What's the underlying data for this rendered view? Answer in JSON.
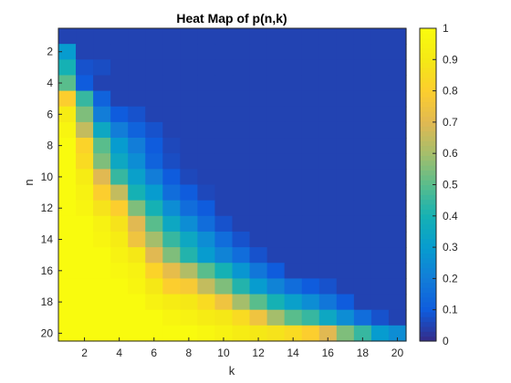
{
  "chart_data": {
    "type": "heatmap",
    "title": "Heat Map of p(n,k)",
    "xlabel": "k",
    "ylabel": "n",
    "x": [
      1,
      2,
      3,
      4,
      5,
      6,
      7,
      8,
      9,
      10,
      11,
      12,
      13,
      14,
      15,
      16,
      17,
      18,
      19,
      20
    ],
    "y": [
      1,
      2,
      3,
      4,
      5,
      6,
      7,
      8,
      9,
      10,
      11,
      12,
      13,
      14,
      15,
      16,
      17,
      18,
      19,
      20
    ],
    "xticks": [
      2,
      4,
      6,
      8,
      10,
      12,
      14,
      16,
      18,
      20
    ],
    "yticks": [
      2,
      4,
      6,
      8,
      10,
      12,
      14,
      16,
      18,
      20
    ],
    "colorbar": {
      "ticks": [
        0,
        0.1,
        0.2,
        0.3,
        0.4,
        0.5,
        0.6,
        0.7,
        0.8,
        0.9,
        1
      ],
      "tick_labels": [
        "0",
        "0.1",
        "0.2",
        "0.3",
        "0.4",
        "0.5",
        "0.6",
        "0.7",
        "0.8",
        "0.9",
        "1"
      ],
      "range": [
        0,
        1
      ]
    },
    "colormap": "parula",
    "values": [
      [
        0.05,
        0.05,
        0.05,
        0.05,
        0.05,
        0.05,
        0.05,
        0.05,
        0.05,
        0.05,
        0.05,
        0.05,
        0.05,
        0.05,
        0.05,
        0.05,
        0.05,
        0.05,
        0.05,
        0.05
      ],
      [
        0.3,
        0.05,
        0.05,
        0.05,
        0.05,
        0.05,
        0.05,
        0.05,
        0.05,
        0.05,
        0.05,
        0.05,
        0.05,
        0.05,
        0.05,
        0.05,
        0.05,
        0.05,
        0.05,
        0.05
      ],
      [
        0.4,
        0.08,
        0.07,
        0.05,
        0.05,
        0.05,
        0.05,
        0.05,
        0.05,
        0.05,
        0.05,
        0.05,
        0.05,
        0.05,
        0.05,
        0.05,
        0.05,
        0.05,
        0.05,
        0.05
      ],
      [
        0.5,
        0.1,
        0.05,
        0.05,
        0.05,
        0.05,
        0.05,
        0.05,
        0.05,
        0.05,
        0.05,
        0.05,
        0.05,
        0.05,
        0.05,
        0.05,
        0.05,
        0.05,
        0.05,
        0.05
      ],
      [
        0.8,
        0.45,
        0.12,
        0.05,
        0.05,
        0.05,
        0.05,
        0.05,
        0.05,
        0.05,
        0.05,
        0.05,
        0.05,
        0.05,
        0.05,
        0.05,
        0.05,
        0.05,
        0.05,
        0.05
      ],
      [
        0.92,
        0.55,
        0.2,
        0.1,
        0.08,
        0.05,
        0.05,
        0.05,
        0.05,
        0.05,
        0.05,
        0.05,
        0.05,
        0.05,
        0.05,
        0.05,
        0.05,
        0.05,
        0.05,
        0.05
      ],
      [
        0.97,
        0.65,
        0.35,
        0.2,
        0.12,
        0.08,
        0.05,
        0.05,
        0.05,
        0.05,
        0.05,
        0.05,
        0.05,
        0.05,
        0.05,
        0.05,
        0.05,
        0.05,
        0.05,
        0.05
      ],
      [
        1.0,
        0.82,
        0.5,
        0.3,
        0.2,
        0.1,
        0.06,
        0.05,
        0.05,
        0.05,
        0.05,
        0.05,
        0.05,
        0.05,
        0.05,
        0.05,
        0.05,
        0.05,
        0.05,
        0.05
      ],
      [
        1.0,
        0.85,
        0.55,
        0.35,
        0.25,
        0.12,
        0.07,
        0.05,
        0.05,
        0.05,
        0.05,
        0.05,
        0.05,
        0.05,
        0.05,
        0.05,
        0.05,
        0.05,
        0.05,
        0.05
      ],
      [
        1.0,
        0.92,
        0.7,
        0.45,
        0.32,
        0.2,
        0.1,
        0.06,
        0.05,
        0.05,
        0.05,
        0.05,
        0.05,
        0.05,
        0.05,
        0.05,
        0.05,
        0.05,
        0.05,
        0.05
      ],
      [
        1.0,
        0.95,
        0.8,
        0.65,
        0.4,
        0.3,
        0.15,
        0.1,
        0.06,
        0.05,
        0.05,
        0.05,
        0.05,
        0.05,
        0.05,
        0.05,
        0.05,
        0.05,
        0.05,
        0.05
      ],
      [
        1.0,
        0.97,
        0.88,
        0.8,
        0.55,
        0.4,
        0.25,
        0.15,
        0.1,
        0.05,
        0.05,
        0.05,
        0.05,
        0.05,
        0.05,
        0.05,
        0.05,
        0.05,
        0.05,
        0.05
      ],
      [
        1.0,
        1.0,
        0.95,
        0.88,
        0.7,
        0.5,
        0.35,
        0.25,
        0.15,
        0.08,
        0.05,
        0.05,
        0.05,
        0.05,
        0.05,
        0.05,
        0.05,
        0.05,
        0.05,
        0.05
      ],
      [
        1.0,
        1.0,
        0.97,
        0.92,
        0.75,
        0.6,
        0.45,
        0.35,
        0.25,
        0.15,
        0.08,
        0.05,
        0.05,
        0.05,
        0.05,
        0.05,
        0.05,
        0.05,
        0.05,
        0.05
      ],
      [
        1.0,
        1.0,
        1.0,
        0.95,
        0.9,
        0.7,
        0.55,
        0.42,
        0.3,
        0.22,
        0.15,
        0.08,
        0.05,
        0.05,
        0.05,
        0.05,
        0.05,
        0.05,
        0.05,
        0.05
      ],
      [
        1.0,
        1.0,
        1.0,
        0.98,
        0.95,
        0.82,
        0.72,
        0.62,
        0.5,
        0.4,
        0.28,
        0.18,
        0.1,
        0.05,
        0.05,
        0.05,
        0.05,
        0.05,
        0.05,
        0.05
      ],
      [
        1.0,
        1.0,
        1.0,
        1.0,
        0.97,
        0.9,
        0.8,
        0.78,
        0.65,
        0.55,
        0.42,
        0.3,
        0.22,
        0.15,
        0.1,
        0.08,
        0.05,
        0.05,
        0.05,
        0.05
      ],
      [
        1.0,
        1.0,
        1.0,
        1.0,
        1.0,
        0.95,
        0.92,
        0.9,
        0.85,
        0.75,
        0.6,
        0.5,
        0.4,
        0.32,
        0.25,
        0.18,
        0.1,
        0.05,
        0.05,
        0.05
      ],
      [
        1.0,
        1.0,
        1.0,
        1.0,
        1.0,
        1.0,
        0.97,
        0.95,
        0.92,
        0.9,
        0.85,
        0.75,
        0.6,
        0.5,
        0.45,
        0.35,
        0.25,
        0.15,
        0.08,
        0.05
      ],
      [
        1.0,
        1.0,
        1.0,
        1.0,
        1.0,
        1.0,
        1.0,
        1.0,
        0.98,
        0.95,
        0.92,
        0.9,
        0.88,
        0.85,
        0.8,
        0.7,
        0.55,
        0.45,
        0.3,
        0.25
      ]
    ],
    "grid": false,
    "legend": "none"
  }
}
